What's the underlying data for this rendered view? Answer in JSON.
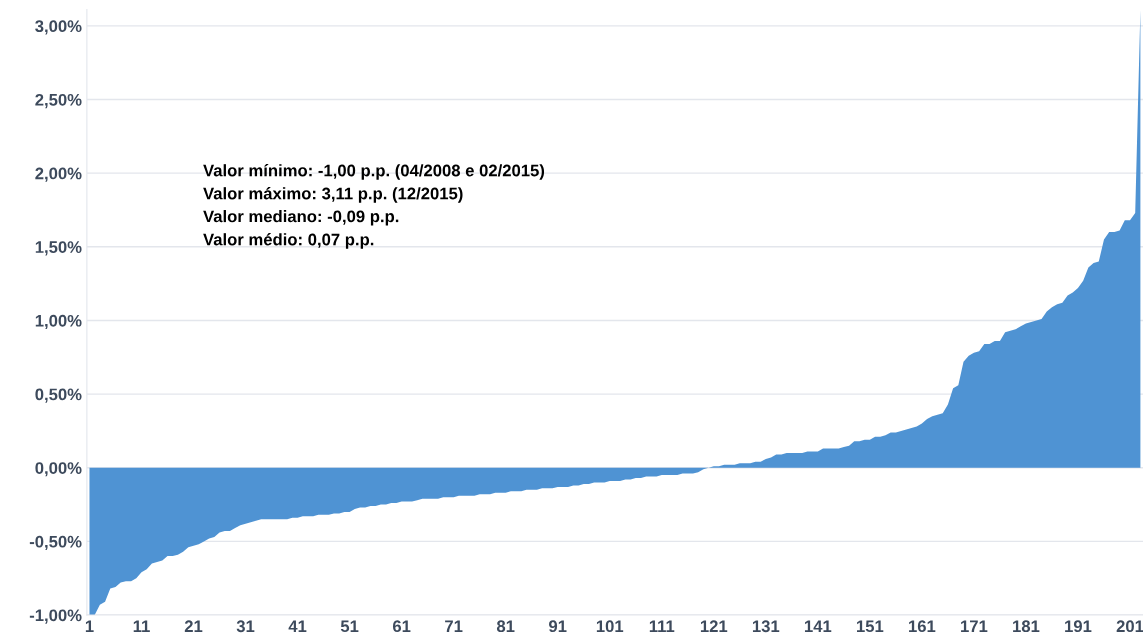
{
  "chart_data": {
    "type": "area",
    "categories": [
      "1",
      null,
      null,
      null,
      null,
      null,
      null,
      null,
      null,
      null,
      "11",
      null,
      null,
      null,
      null,
      null,
      null,
      null,
      null,
      null,
      "21",
      null,
      null,
      null,
      null,
      null,
      null,
      null,
      null,
      null,
      "31",
      null,
      null,
      null,
      null,
      null,
      null,
      null,
      null,
      null,
      "41",
      null,
      null,
      null,
      null,
      null,
      null,
      null,
      null,
      null,
      "51",
      null,
      null,
      null,
      null,
      null,
      null,
      null,
      null,
      null,
      "61",
      null,
      null,
      null,
      null,
      null,
      null,
      null,
      null,
      null,
      "71",
      null,
      null,
      null,
      null,
      null,
      null,
      null,
      null,
      null,
      "81",
      null,
      null,
      null,
      null,
      null,
      null,
      null,
      null,
      null,
      "91",
      null,
      null,
      null,
      null,
      null,
      null,
      null,
      null,
      null,
      "101",
      null,
      null,
      null,
      null,
      null,
      null,
      null,
      null,
      null,
      "111",
      null,
      null,
      null,
      null,
      null,
      null,
      null,
      null,
      null,
      "121",
      null,
      null,
      null,
      null,
      null,
      null,
      null,
      null,
      null,
      "131",
      null,
      null,
      null,
      null,
      null,
      null,
      null,
      null,
      null,
      "141",
      null,
      null,
      null,
      null,
      null,
      null,
      null,
      null,
      null,
      "151",
      null,
      null,
      null,
      null,
      null,
      null,
      null,
      null,
      null,
      "161",
      null,
      null,
      null,
      null,
      null,
      null,
      null,
      null,
      null,
      "171",
      null,
      null,
      null,
      null,
      null,
      null,
      null,
      null,
      null,
      "181",
      null,
      null,
      null,
      null,
      null,
      null,
      null,
      null,
      null,
      "191",
      null,
      null,
      null,
      null,
      null,
      null,
      null,
      null,
      null,
      "201",
      null,
      null
    ],
    "series": [
      {
        "color": "#4f93d3",
        "values": [
          -1.0,
          -1.0,
          -0.93,
          -0.91,
          -0.82,
          -0.81,
          -0.78,
          -0.77,
          -0.77,
          -0.75,
          -0.71,
          -0.69,
          -0.65,
          -0.64,
          -0.63,
          -0.6,
          -0.6,
          -0.59,
          -0.57,
          -0.54,
          -0.53,
          -0.52,
          -0.5,
          -0.48,
          -0.47,
          -0.44,
          -0.43,
          -0.43,
          -0.41,
          -0.39,
          -0.38,
          -0.37,
          -0.36,
          -0.35,
          -0.35,
          -0.35,
          -0.35,
          -0.35,
          -0.35,
          -0.34,
          -0.34,
          -0.33,
          -0.33,
          -0.33,
          -0.32,
          -0.32,
          -0.32,
          -0.31,
          -0.31,
          -0.3,
          -0.3,
          -0.28,
          -0.27,
          -0.27,
          -0.26,
          -0.26,
          -0.25,
          -0.25,
          -0.24,
          -0.24,
          -0.23,
          -0.23,
          -0.23,
          -0.22,
          -0.21,
          -0.21,
          -0.21,
          -0.21,
          -0.2,
          -0.2,
          -0.2,
          -0.19,
          -0.19,
          -0.19,
          -0.19,
          -0.18,
          -0.18,
          -0.18,
          -0.17,
          -0.17,
          -0.17,
          -0.16,
          -0.16,
          -0.16,
          -0.15,
          -0.15,
          -0.15,
          -0.14,
          -0.14,
          -0.14,
          -0.13,
          -0.13,
          -0.13,
          -0.12,
          -0.12,
          -0.11,
          -0.11,
          -0.1,
          -0.1,
          -0.1,
          -0.09,
          -0.09,
          -0.09,
          -0.08,
          -0.08,
          -0.07,
          -0.07,
          -0.06,
          -0.06,
          -0.06,
          -0.05,
          -0.05,
          -0.05,
          -0.05,
          -0.04,
          -0.04,
          -0.04,
          -0.03,
          -0.01,
          0.0,
          0.01,
          0.01,
          0.02,
          0.02,
          0.02,
          0.03,
          0.03,
          0.03,
          0.04,
          0.04,
          0.06,
          0.07,
          0.09,
          0.09,
          0.1,
          0.1,
          0.1,
          0.1,
          0.11,
          0.11,
          0.11,
          0.13,
          0.13,
          0.13,
          0.13,
          0.14,
          0.15,
          0.18,
          0.18,
          0.19,
          0.19,
          0.21,
          0.21,
          0.22,
          0.24,
          0.24,
          0.25,
          0.26,
          0.27,
          0.28,
          0.3,
          0.33,
          0.35,
          0.36,
          0.37,
          0.43,
          0.54,
          0.56,
          0.72,
          0.76,
          0.78,
          0.79,
          0.84,
          0.84,
          0.86,
          0.86,
          0.92,
          0.93,
          0.94,
          0.96,
          0.98,
          0.99,
          1.0,
          1.01,
          1.06,
          1.09,
          1.11,
          1.12,
          1.17,
          1.19,
          1.22,
          1.27,
          1.36,
          1.39,
          1.4,
          1.55,
          1.6,
          1.6,
          1.61,
          1.68,
          1.68,
          1.73,
          3.11
        ]
      }
    ],
    "ylim": [
      -1.0,
      3.11
    ],
    "yticks": [
      {
        "value": -1.0,
        "label": "-1,00%"
      },
      {
        "value": -0.5,
        "label": "-0,50%"
      },
      {
        "value": 0,
        "label": "0,00%"
      },
      {
        "value": 0.5,
        "label": "0,50%"
      },
      {
        "value": 1.0,
        "label": "1,00%"
      },
      {
        "value": 1.5,
        "label": "1,50%"
      },
      {
        "value": 2.0,
        "label": "2,00%"
      },
      {
        "value": 2.5,
        "label": "2,50%"
      },
      {
        "value": 3.0,
        "label": "3,00%"
      }
    ],
    "grid": "y",
    "annotations": [
      "Valor mínimo: -1,00 p.p. (04/2008 e 02/2015)",
      "Valor máximo: 3,11 p.p. (12/2015)",
      "Valor mediano: -0,09 p.p.",
      "Valor médio: 0,07 p.p."
    ]
  }
}
